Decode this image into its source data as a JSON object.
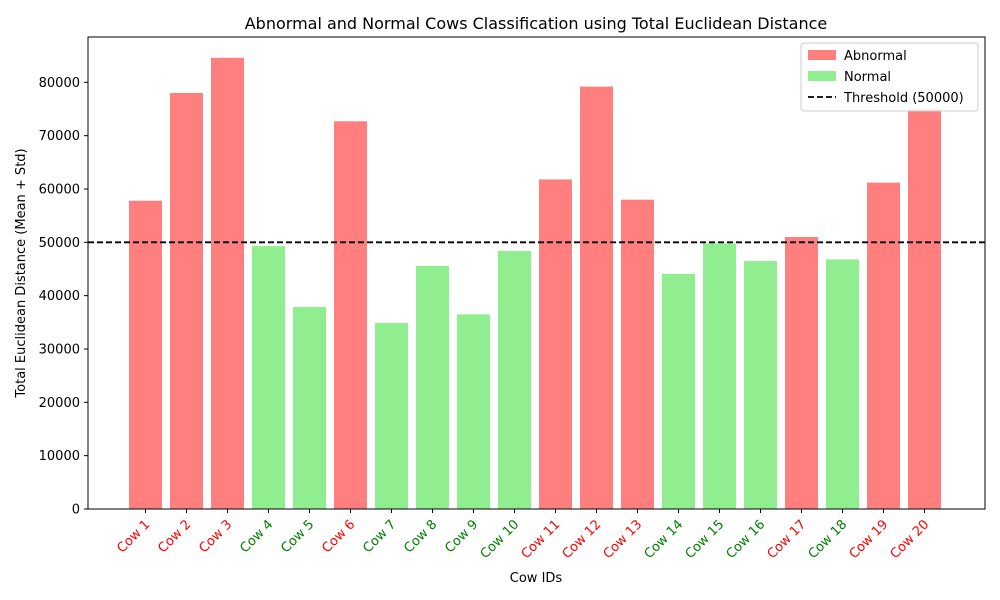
{
  "chart_data": {
    "type": "bar",
    "title": "Abnormal and Normal Cows Classification using Total Euclidean Distance",
    "xlabel": "Cow IDs",
    "ylabel": "Total Euclidean Distance (Mean + Std)",
    "ylim": [
      0,
      88500
    ],
    "yticks": [
      0,
      10000,
      20000,
      30000,
      40000,
      50000,
      60000,
      70000,
      80000
    ],
    "grid": false,
    "legend_position": "top-right",
    "threshold": {
      "value": 50000,
      "label": "Threshold (50000)",
      "style": "dashed",
      "color": "#000000"
    },
    "classes": {
      "abnormal": {
        "label": "Abnormal",
        "bar_color": "#ff7f7f",
        "tick_color": "#ff0000"
      },
      "normal": {
        "label": "Normal",
        "bar_color": "#90ee90",
        "tick_color": "#008000"
      }
    },
    "categories": [
      "Cow 1",
      "Cow 2",
      "Cow 3",
      "Cow 4",
      "Cow 5",
      "Cow 6",
      "Cow 7",
      "Cow 8",
      "Cow 9",
      "Cow 10",
      "Cow 11",
      "Cow 12",
      "Cow 13",
      "Cow 14",
      "Cow 15",
      "Cow 16",
      "Cow 17",
      "Cow 18",
      "Cow 19",
      "Cow 20"
    ],
    "values": [
      57800,
      78000,
      84600,
      49300,
      37900,
      72700,
      34900,
      45600,
      36500,
      48400,
      61800,
      79200,
      58000,
      44100,
      49800,
      46500,
      51000,
      46800,
      61200,
      75000
    ],
    "class_of": [
      "abnormal",
      "abnormal",
      "abnormal",
      "normal",
      "normal",
      "abnormal",
      "normal",
      "normal",
      "normal",
      "normal",
      "abnormal",
      "abnormal",
      "abnormal",
      "normal",
      "normal",
      "normal",
      "abnormal",
      "normal",
      "abnormal",
      "abnormal"
    ]
  }
}
